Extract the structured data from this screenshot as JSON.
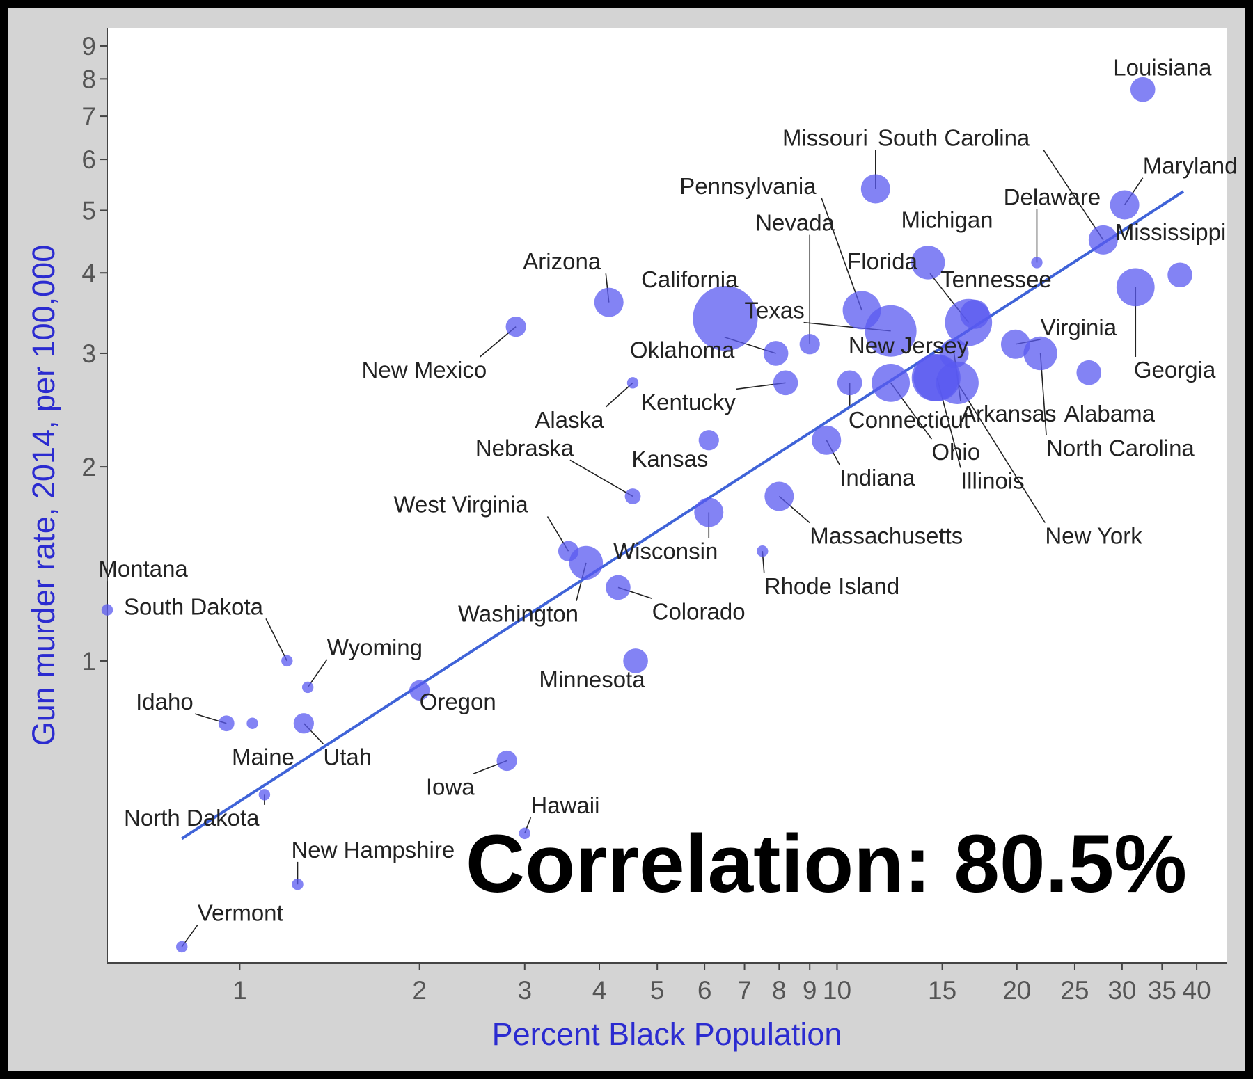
{
  "chart_data": {
    "type": "scatter",
    "title": "",
    "xlabel": "Percent Black Population",
    "ylabel": "Gun murder rate, 2014, per 100,000",
    "x_scale": "log",
    "y_scale": "log",
    "xlim": [
      0.6,
      45
    ],
    "ylim": [
      0.34,
      9.6
    ],
    "x_ticks": [
      1,
      2,
      3,
      4,
      5,
      6,
      7,
      8,
      9,
      10,
      15,
      20,
      25,
      30,
      35,
      40
    ],
    "y_ticks": [
      1,
      2,
      3,
      4,
      5,
      6,
      7,
      8,
      9
    ],
    "grid": false,
    "legend": "none",
    "annotation": "Correlation: 80.5%",
    "trendline": {
      "x": [
        0.8,
        38
      ],
      "y": [
        0.53,
        5.35
      ]
    },
    "point_color": "#5a5af0",
    "line_color": "#4169d6",
    "points": [
      {
        "label": "Louisiana",
        "x": 32.5,
        "y": 7.7,
        "size": 4,
        "lx": 29,
        "ly": 8.1,
        "anchor": "start"
      },
      {
        "label": "Missouri",
        "x": 11.6,
        "y": 5.4,
        "size": 5,
        "lx": 8.1,
        "ly": 6.3,
        "anchor": "start"
      },
      {
        "label": "South Carolina",
        "x": 27.9,
        "y": 4.5,
        "size": 5,
        "lx": 11.7,
        "ly": 6.3,
        "anchor": "start"
      },
      {
        "label": "Maryland",
        "x": 30.3,
        "y": 5.1,
        "size": 5,
        "lx": 32.5,
        "ly": 5.7,
        "anchor": "start"
      },
      {
        "label": "Delaware",
        "x": 21.6,
        "y": 4.15,
        "size": 1,
        "lx": 19.0,
        "ly": 5.1,
        "anchor": "start"
      },
      {
        "label": "Pennsylvania",
        "x": 11.0,
        "y": 3.5,
        "size": 7,
        "lx": 5.45,
        "ly": 5.3,
        "anchor": "start"
      },
      {
        "label": "Mississippi",
        "x": 37.5,
        "y": 3.97,
        "size": 4,
        "lx": 29.2,
        "ly": 4.5,
        "anchor": "start"
      },
      {
        "label": "Nevada",
        "x": 9.0,
        "y": 3.1,
        "size": 3,
        "lx": 7.3,
        "ly": 4.65,
        "anchor": "start"
      },
      {
        "label": "Michigan",
        "x": 14.2,
        "y": 4.15,
        "size": 6,
        "lx": 12.8,
        "ly": 4.7,
        "anchor": "start"
      },
      {
        "label": "Arizona",
        "x": 4.15,
        "y": 3.6,
        "size": 5,
        "lx": 2.98,
        "ly": 4.05,
        "anchor": "start"
      },
      {
        "label": "Florida",
        "x": 16.6,
        "y": 3.35,
        "size": 9,
        "lx": 10.4,
        "ly": 4.05,
        "anchor": "start"
      },
      {
        "label": "California",
        "x": 6.5,
        "y": 3.4,
        "size": 13,
        "lx": 4.7,
        "ly": 3.8,
        "anchor": "start"
      },
      {
        "label": "Tennessee",
        "x": 17.0,
        "y": 3.45,
        "size": 5,
        "lx": 14.9,
        "ly": 3.8,
        "anchor": "start"
      },
      {
        "label": "Texas",
        "x": 12.3,
        "y": 3.25,
        "size": 10,
        "lx": 7.0,
        "ly": 3.4,
        "anchor": "start"
      },
      {
        "label": "Virginia",
        "x": 19.9,
        "y": 3.1,
        "size": 5,
        "lx": 21.9,
        "ly": 3.2,
        "anchor": "start"
      },
      {
        "label": "Georgia",
        "x": 31.6,
        "y": 3.8,
        "size": 7,
        "lx": 31.4,
        "ly": 2.75,
        "anchor": "start"
      },
      {
        "label": "New Mexico",
        "x": 2.9,
        "y": 3.3,
        "size": 3,
        "lx": 1.6,
        "ly": 2.75,
        "anchor": "start"
      },
      {
        "label": "Oklahoma",
        "x": 7.9,
        "y": 3.0,
        "size": 4,
        "lx": 4.5,
        "ly": 2.95,
        "anchor": "start"
      },
      {
        "label": "New Jersey",
        "x": 14.6,
        "y": 2.75,
        "size": 9,
        "lx": 10.45,
        "ly": 3.0,
        "anchor": "start"
      },
      {
        "label": "Connecticut",
        "x": 10.5,
        "y": 2.7,
        "size": 4,
        "lx": 10.45,
        "ly": 2.3,
        "anchor": "start"
      },
      {
        "label": "Alaska",
        "x": 4.55,
        "y": 2.7,
        "size": 1,
        "lx": 3.12,
        "ly": 2.3,
        "anchor": "start"
      },
      {
        "label": "Kentucky",
        "x": 8.2,
        "y": 2.7,
        "size": 4,
        "lx": 4.7,
        "ly": 2.45,
        "anchor": "start"
      },
      {
        "label": "Arkansas",
        "x": 15.7,
        "y": 3.0,
        "size": 5,
        "lx": 16.1,
        "ly": 2.35,
        "anchor": "start"
      },
      {
        "label": "Alabama",
        "x": 26.4,
        "y": 2.8,
        "size": 4,
        "lx": 24.0,
        "ly": 2.35,
        "anchor": "start"
      },
      {
        "label": "North Carolina",
        "x": 21.9,
        "y": 3.0,
        "size": 6,
        "lx": 22.4,
        "ly": 2.08,
        "anchor": "start"
      },
      {
        "label": "Ohio",
        "x": 12.3,
        "y": 2.7,
        "size": 7,
        "lx": 14.4,
        "ly": 2.05,
        "anchor": "start"
      },
      {
        "label": "Illinois",
        "x": 14.7,
        "y": 2.75,
        "size": 9,
        "lx": 16.1,
        "ly": 1.85,
        "anchor": "start"
      },
      {
        "label": "New York",
        "x": 15.9,
        "y": 2.7,
        "size": 8,
        "lx": 22.3,
        "ly": 1.52,
        "anchor": "start"
      },
      {
        "label": "Kansas",
        "x": 6.1,
        "y": 2.2,
        "size": 3,
        "lx": 4.53,
        "ly": 2.0,
        "anchor": "start"
      },
      {
        "label": "Indiana",
        "x": 9.6,
        "y": 2.2,
        "size": 5,
        "lx": 10.1,
        "ly": 1.87,
        "anchor": "start"
      },
      {
        "label": "Nebraska",
        "x": 4.55,
        "y": 1.8,
        "size": 2,
        "lx": 2.48,
        "ly": 2.08,
        "anchor": "start"
      },
      {
        "label": "West Virginia",
        "x": 3.55,
        "y": 1.48,
        "size": 3,
        "lx": 1.81,
        "ly": 1.7,
        "anchor": "start"
      },
      {
        "label": "Massachusetts",
        "x": 8.0,
        "y": 1.8,
        "size": 5,
        "lx": 9.0,
        "ly": 1.52,
        "anchor": "start"
      },
      {
        "label": "Wisconsin",
        "x": 6.1,
        "y": 1.7,
        "size": 5,
        "lx": 4.22,
        "ly": 1.44,
        "anchor": "start"
      },
      {
        "label": "Rhode Island",
        "x": 7.5,
        "y": 1.48,
        "size": 1,
        "lx": 7.55,
        "ly": 1.27,
        "anchor": "start"
      },
      {
        "label": "Washington",
        "x": 3.8,
        "y": 1.42,
        "size": 6,
        "lx": 2.32,
        "ly": 1.15,
        "anchor": "start"
      },
      {
        "label": "Colorado",
        "x": 4.3,
        "y": 1.3,
        "size": 4,
        "lx": 4.9,
        "ly": 1.16,
        "anchor": "start"
      },
      {
        "label": "Montana",
        "x": 0.6,
        "y": 1.2,
        "size": 1,
        "lx": 0.58,
        "ly": 1.35,
        "anchor": "start"
      },
      {
        "label": "South Dakota",
        "x": 1.2,
        "y": 1.0,
        "size": 1,
        "lx": 0.64,
        "ly": 1.18,
        "anchor": "start"
      },
      {
        "label": "Wyoming",
        "x": 1.3,
        "y": 0.91,
        "size": 1,
        "lx": 1.4,
        "ly": 1.02,
        "anchor": "start"
      },
      {
        "label": "Minnesota",
        "x": 4.6,
        "y": 1.0,
        "size": 4,
        "lx": 3.17,
        "ly": 0.91,
        "anchor": "start"
      },
      {
        "label": "Oregon",
        "x": 2.0,
        "y": 0.9,
        "size": 3,
        "lx": 2.0,
        "ly": 0.84,
        "anchor": "start"
      },
      {
        "label": "Idaho",
        "x": 0.95,
        "y": 0.8,
        "size": 2,
        "lx": 0.67,
        "ly": 0.84,
        "anchor": "start"
      },
      {
        "label": "Maine",
        "x": 1.05,
        "y": 0.8,
        "size": 1,
        "lx": 0.97,
        "ly": 0.69,
        "anchor": "start"
      },
      {
        "label": "Utah",
        "x": 1.28,
        "y": 0.8,
        "size": 3,
        "lx": 1.38,
        "ly": 0.69,
        "anchor": "start"
      },
      {
        "label": "Iowa",
        "x": 2.8,
        "y": 0.7,
        "size": 3,
        "lx": 2.05,
        "ly": 0.62,
        "anchor": "start"
      },
      {
        "label": "North Dakota",
        "x": 1.1,
        "y": 0.62,
        "size": 1,
        "lx": 0.64,
        "ly": 0.555,
        "anchor": "start"
      },
      {
        "label": "Hawaii",
        "x": 3.0,
        "y": 0.54,
        "size": 1,
        "lx": 3.07,
        "ly": 0.58,
        "anchor": "start"
      },
      {
        "label": "New Hampshire",
        "x": 1.25,
        "y": 0.45,
        "size": 1,
        "lx": 1.22,
        "ly": 0.495,
        "anchor": "start"
      },
      {
        "label": "Vermont",
        "x": 0.8,
        "y": 0.36,
        "size": 1,
        "lx": 0.85,
        "ly": 0.395,
        "anchor": "start"
      }
    ]
  }
}
